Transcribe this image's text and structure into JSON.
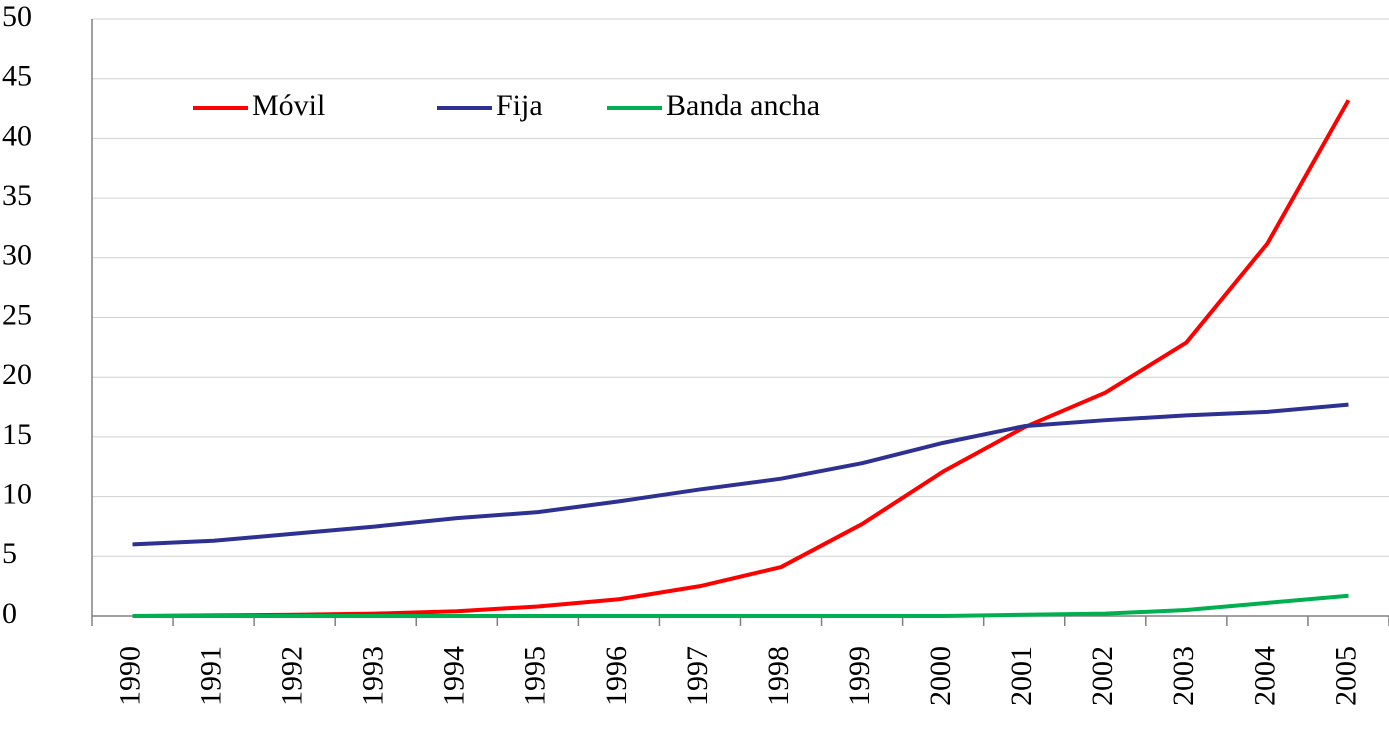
{
  "chart_data": {
    "type": "line",
    "categories": [
      "1990",
      "1991",
      "1992",
      "1993",
      "1994",
      "1995",
      "1996",
      "1997",
      "1998",
      "1999",
      "2000",
      "2001",
      "2002",
      "2003",
      "2004",
      "2005"
    ],
    "series": [
      {
        "name": "Móvil",
        "color": "#ff0000",
        "values": [
          0,
          0.05,
          0.1,
          0.2,
          0.4,
          0.8,
          1.4,
          2.5,
          4.1,
          7.7,
          12.1,
          15.8,
          18.7,
          22.9,
          31.2,
          43.2
        ]
      },
      {
        "name": "Fija",
        "color": "#2e3192",
        "values": [
          6.0,
          6.3,
          6.9,
          7.5,
          8.2,
          8.7,
          9.6,
          10.6,
          11.5,
          12.8,
          14.5,
          15.9,
          16.4,
          16.8,
          17.1,
          17.7
        ]
      },
      {
        "name": "Banda ancha",
        "color": "#00b050",
        "values": [
          0,
          0,
          0,
          0,
          0,
          0,
          0,
          0,
          0,
          0,
          0,
          0.1,
          0.2,
          0.5,
          1.1,
          1.7
        ]
      }
    ],
    "ylim": [
      0,
      50
    ],
    "yticks": [
      0,
      5,
      10,
      15,
      20,
      25,
      30,
      35,
      40,
      45,
      50
    ],
    "grid": true,
    "legend": "top-left"
  }
}
